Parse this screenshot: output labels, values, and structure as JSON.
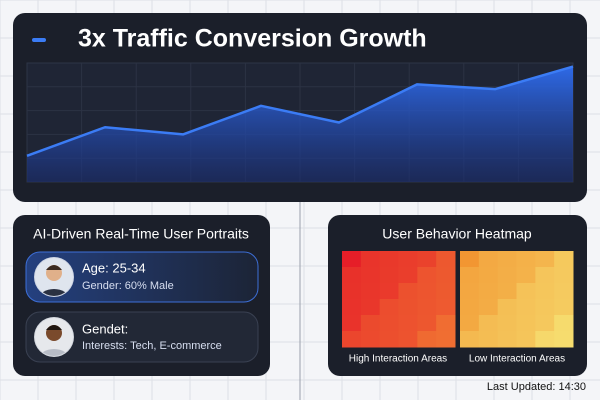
{
  "chart_data": {
    "type": "area",
    "title": "3x Traffic Conversion Growth",
    "categories": [
      null,
      null,
      null,
      null,
      null,
      null,
      null,
      null
    ],
    "values": [
      22,
      46,
      40,
      64,
      50,
      82,
      78,
      97
    ],
    "ylim": [
      0,
      100
    ],
    "grid": true,
    "color": "#3b7cf5"
  },
  "portraits": {
    "title": "AI-Driven Real-Time User Portraits",
    "cards": [
      {
        "heading": "Age: 25-34",
        "detail": "Gender: 60% Male"
      },
      {
        "heading": "Gendet:",
        "detail": "Interests: Tech, E-commerce"
      }
    ]
  },
  "heatmap": {
    "title": "User Behavior Heatmap",
    "labels": [
      "High Interaction Areas",
      "Low Interaction Areas"
    ]
  },
  "footer": "Last Updated: 14:30"
}
